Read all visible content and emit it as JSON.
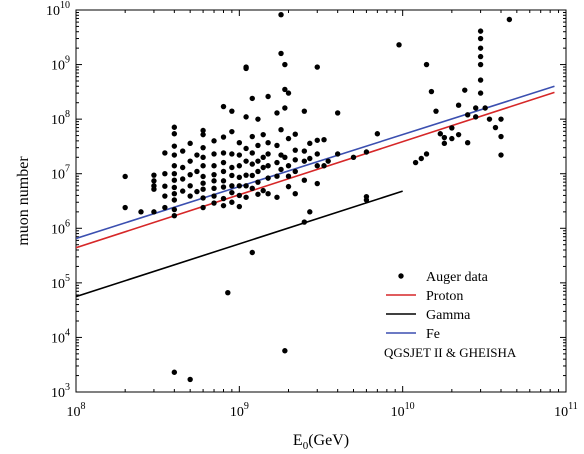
{
  "chart_data": {
    "type": "scatter",
    "xlabel": "E",
    "xlabel_sub": "0",
    "xlabel_unit": "(GeV)",
    "ylabel": "muon number",
    "x_scale": "log",
    "y_scale": "log",
    "xlim": [
      100000000,
      100000000000
    ],
    "ylim": [
      1000,
      10000000000
    ],
    "x_ticks": [
      {
        "value": 100000000,
        "base": "10",
        "exp": "8"
      },
      {
        "value": 1000000000,
        "base": "10",
        "exp": "9"
      },
      {
        "value": 10000000000,
        "base": "10",
        "exp": "10"
      },
      {
        "value": 100000000000,
        "base": "10",
        "exp": "11"
      }
    ],
    "y_ticks": [
      {
        "value": 1000,
        "base": "10",
        "exp": "3"
      },
      {
        "value": 10000,
        "base": "10",
        "exp": "4"
      },
      {
        "value": 100000,
        "base": "10",
        "exp": "5"
      },
      {
        "value": 1000000,
        "base": "10",
        "exp": "6"
      },
      {
        "value": 10000000,
        "base": "10",
        "exp": "7"
      },
      {
        "value": 100000000,
        "base": "10",
        "exp": "8"
      },
      {
        "value": 1000000000,
        "base": "10",
        "exp": "9"
      },
      {
        "value": 10000000000,
        "base": "10",
        "exp": "10"
      }
    ],
    "grid": false,
    "legend_position": "lower-right",
    "legend_note": "QGSJET II & GHEISHA",
    "series": [
      {
        "name": "Auger data",
        "kind": "points",
        "color": "#000000",
        "points": [
          [
            200000000.0,
            8900000.0
          ],
          [
            200000000.0,
            2400000.0
          ],
          [
            250000000.0,
            2000000.0
          ],
          [
            300000000.0,
            5200000.0
          ],
          [
            300000000.0,
            6000000.0
          ],
          [
            300000000.0,
            7400000.0
          ],
          [
            300000000.0,
            9400000.0
          ],
          [
            300000000.0,
            2000000.0
          ],
          [
            350000000.0,
            24000000.0
          ],
          [
            350000000.0,
            10000000.0
          ],
          [
            350000000.0,
            5900000.0
          ],
          [
            350000000.0,
            3900000.0
          ],
          [
            350000000.0,
            2400000.0
          ],
          [
            400000000.0,
            71000000.0
          ],
          [
            400000000.0,
            54000000.0
          ],
          [
            400000000.0,
            32000000.0
          ],
          [
            400000000.0,
            22000000.0
          ],
          [
            400000000.0,
            14000000.0
          ],
          [
            400000000.0,
            10000000.0
          ],
          [
            400000000.0,
            7600000.0
          ],
          [
            400000000.0,
            5600000.0
          ],
          [
            400000000.0,
            4300000.0
          ],
          [
            400000000.0,
            3300000.0
          ],
          [
            400000000.0,
            2200000.0
          ],
          [
            400000000.0,
            1700000.0
          ],
          [
            400000000.0,
            2300
          ],
          [
            450000000.0,
            26000000.0
          ],
          [
            450000000.0,
            13000000.0
          ],
          [
            450000000.0,
            8000000.0
          ],
          [
            450000000.0,
            4800000.0
          ],
          [
            500000000.0,
            36000000.0
          ],
          [
            500000000.0,
            17000000.0
          ],
          [
            500000000.0,
            9600000.0
          ],
          [
            500000000.0,
            6000000.0
          ],
          [
            500000000.0,
            3900000.0
          ],
          [
            500000000.0,
            1700
          ],
          [
            550000000.0,
            22000000.0
          ],
          [
            550000000.0,
            11000000.0
          ],
          [
            550000000.0,
            4700000.0
          ],
          [
            600000000.0,
            62000000.0
          ],
          [
            600000000.0,
            52000000.0
          ],
          [
            600000000.0,
            30000000.0
          ],
          [
            600000000.0,
            20000000.0
          ],
          [
            600000000.0,
            14000000.0
          ],
          [
            600000000.0,
            8900000.0
          ],
          [
            600000000.0,
            6700000.0
          ],
          [
            600000000.0,
            5200000.0
          ],
          [
            600000000.0,
            3600000.0
          ],
          [
            600000000.0,
            2400000.0
          ],
          [
            700000000.0,
            40000000.0
          ],
          [
            700000000.0,
            23000000.0
          ],
          [
            700000000.0,
            14000000.0
          ],
          [
            700000000.0,
            9600000.0
          ],
          [
            700000000.0,
            7400000.0
          ],
          [
            700000000.0,
            5400000.0
          ],
          [
            700000000.0,
            3900000.0
          ],
          [
            700000000.0,
            2900000.0
          ],
          [
            800000000.0,
            170000000.0
          ],
          [
            800000000.0,
            47000000.0
          ],
          [
            800000000.0,
            24000000.0
          ],
          [
            800000000.0,
            16000000.0
          ],
          [
            800000000.0,
            11000000.0
          ],
          [
            800000000.0,
            7400000.0
          ],
          [
            800000000.0,
            5700000.0
          ],
          [
            800000000.0,
            3500000.0
          ],
          [
            800000000.0,
            2600000.0
          ],
          [
            850000000.0,
            66000.0
          ],
          [
            900000000.0,
            140000000.0
          ],
          [
            900000000.0,
            59000000.0
          ],
          [
            900000000.0,
            23000000.0
          ],
          [
            900000000.0,
            13000000.0
          ],
          [
            900000000.0,
            9300000.0
          ],
          [
            900000000.0,
            6000000.0
          ],
          [
            900000000.0,
            4500000.0
          ],
          [
            900000000.0,
            3000000.0
          ],
          [
            1000000000.0,
            37000000.0
          ],
          [
            1000000000.0,
            22000000.0
          ],
          [
            1000000000.0,
            14000000.0
          ],
          [
            1000000000.0,
            8600000.0
          ],
          [
            1000000000.0,
            6000000.0
          ],
          [
            1000000000.0,
            4000000.0
          ],
          [
            1000000000.0,
            2500000.0
          ],
          [
            1100000000.0,
            900000000.0
          ],
          [
            1100000000.0,
            850000000.0
          ],
          [
            1100000000.0,
            110000000.0
          ],
          [
            1100000000.0,
            29000000.0
          ],
          [
            1100000000.0,
            17000000.0
          ],
          [
            1100000000.0,
            9400000.0
          ],
          [
            1100000000.0,
            6000000.0
          ],
          [
            1100000000.0,
            3700000.0
          ],
          [
            1200000000.0,
            240000000.0
          ],
          [
            1200000000.0,
            48000000.0
          ],
          [
            1200000000.0,
            24000000.0
          ],
          [
            1200000000.0,
            15000000.0
          ],
          [
            1200000000.0,
            9300000.0
          ],
          [
            1200000000.0,
            5400000.0
          ],
          [
            1200000000.0,
            360000.0
          ],
          [
            1300000000.0,
            100000000.0
          ],
          [
            1300000000.0,
            33000000.0
          ],
          [
            1300000000.0,
            17000000.0
          ],
          [
            1300000000.0,
            11000000.0
          ],
          [
            1300000000.0,
            7000000.0
          ],
          [
            1300000000.0,
            4200000.0
          ],
          [
            1400000000.0,
            52000000.0
          ],
          [
            1400000000.0,
            20000000.0
          ],
          [
            1400000000.0,
            13000000.0
          ],
          [
            1400000000.0,
            4900000.0
          ],
          [
            1500000000.0,
            260000000.0
          ],
          [
            1500000000.0,
            37000000.0
          ],
          [
            1500000000.0,
            23000000.0
          ],
          [
            1500000000.0,
            14000000.0
          ],
          [
            1500000000.0,
            8300000.0
          ],
          [
            1500000000.0,
            4300000.0
          ],
          [
            1700000000.0,
            130000000.0
          ],
          [
            1700000000.0,
            33000000.0
          ],
          [
            1700000000.0,
            16000000.0
          ],
          [
            1700000000.0,
            9000000.0
          ],
          [
            1700000000.0,
            3700000.0
          ],
          [
            1800000000.0,
            8200000000.0
          ],
          [
            1800000000.0,
            1600000000.0
          ],
          [
            1800000000.0,
            64000000.0
          ],
          [
            1800000000.0,
            22000000.0
          ],
          [
            1800000000.0,
            12000000.0
          ],
          [
            1900000000.0,
            1000000000.0
          ],
          [
            1900000000.0,
            350000000.0
          ],
          [
            1900000000.0,
            160000000.0
          ],
          [
            1900000000.0,
            20000000.0
          ],
          [
            1900000000.0,
            5700
          ],
          [
            2000000000.0,
            300000000.0
          ],
          [
            2000000000.0,
            44000000.0
          ],
          [
            2000000000.0,
            14000000.0
          ],
          [
            2000000000.0,
            9000000.0
          ],
          [
            2000000000.0,
            5800000.0
          ],
          [
            2200000000.0,
            53000000.0
          ],
          [
            2200000000.0,
            27000000.0
          ],
          [
            2200000000.0,
            18000000.0
          ],
          [
            2200000000.0,
            11000000.0
          ],
          [
            2200000000.0,
            4300000.0
          ],
          [
            2500000000.0,
            140000000.0
          ],
          [
            2500000000.0,
            26000000.0
          ],
          [
            2500000000.0,
            17000000.0
          ],
          [
            2500000000.0,
            7600000.0
          ],
          [
            2500000000.0,
            1300000.0
          ],
          [
            2700000000.0,
            36000000.0
          ],
          [
            2700000000.0,
            19000000.0
          ],
          [
            2700000000.0,
            2000000.0
          ],
          [
            3000000000.0,
            900000000.0
          ],
          [
            3000000000.0,
            41000000.0
          ],
          [
            3000000000.0,
            23000000.0
          ],
          [
            3000000000.0,
            14000000.0
          ],
          [
            3000000000.0,
            6600000.0
          ],
          [
            3300000000.0,
            42000000.0
          ],
          [
            3300000000.0,
            14000000.0
          ],
          [
            3500000000.0,
            17000000.0
          ],
          [
            4000000000.0,
            130000000.0
          ],
          [
            4000000000.0,
            23000000.0
          ],
          [
            5000000000.0,
            20000000.0
          ],
          [
            6000000000.0,
            25000000.0
          ],
          [
            6000000000.0,
            3800000.0
          ],
          [
            6000000000.0,
            3300000.0
          ],
          [
            7000000000.0,
            54000000.0
          ],
          [
            9500000000.0,
            2300000000.0
          ],
          [
            12000000000.0,
            16000000.0
          ],
          [
            13000000000.0,
            19000000.0
          ],
          [
            14000000000.0,
            1000000000.0
          ],
          [
            14000000000.0,
            23000000.0
          ],
          [
            15000000000.0,
            320000000.0
          ],
          [
            16000000000.0,
            140000000.0
          ],
          [
            17000000000.0,
            54000000.0
          ],
          [
            18000000000.0,
            46000000.0
          ],
          [
            18000000000.0,
            36000000.0
          ],
          [
            20000000000.0,
            44000000.0
          ],
          [
            20000000000.0,
            69000000.0
          ],
          [
            22000000000.0,
            180000000.0
          ],
          [
            22000000000.0,
            52000000.0
          ],
          [
            24000000000.0,
            340000000.0
          ],
          [
            25000000000.0,
            120000000.0
          ],
          [
            25000000000.0,
            37000000.0
          ],
          [
            28000000000.0,
            110000000.0
          ],
          [
            28000000000.0,
            160000000.0
          ],
          [
            30000000000.0,
            4100000000.0
          ],
          [
            30000000000.0,
            3000000000.0
          ],
          [
            30000000000.0,
            2000000000.0
          ],
          [
            30000000000.0,
            1400000000.0
          ],
          [
            30000000000.0,
            1000000000.0
          ],
          [
            30000000000.0,
            520000000.0
          ],
          [
            30000000000.0,
            300000000.0
          ],
          [
            32000000000.0,
            160000000.0
          ],
          [
            34000000000.0,
            100000000.0
          ],
          [
            37000000000.0,
            70000000.0
          ],
          [
            40000000000.0,
            100000000.0
          ],
          [
            40000000000.0,
            48000000.0
          ],
          [
            40000000000.0,
            22000000.0
          ],
          [
            45000000000.0,
            6700000000.0
          ]
        ]
      },
      {
        "name": "Proton",
        "kind": "line",
        "color": "#d62728",
        "points": [
          [
            100000000.0,
            440000.0
          ],
          [
            85000000000.0,
            310000000.0
          ]
        ]
      },
      {
        "name": "Gamma",
        "kind": "line",
        "color": "#000000",
        "points": [
          [
            100000000.0,
            56000.0
          ],
          [
            10000000000.0,
            4800000.0
          ]
        ]
      },
      {
        "name": "Fe",
        "kind": "line",
        "color": "#3b4fb0",
        "points": [
          [
            100000000.0,
            650000.0
          ],
          [
            85000000000.0,
            400000000.0
          ]
        ]
      }
    ]
  }
}
